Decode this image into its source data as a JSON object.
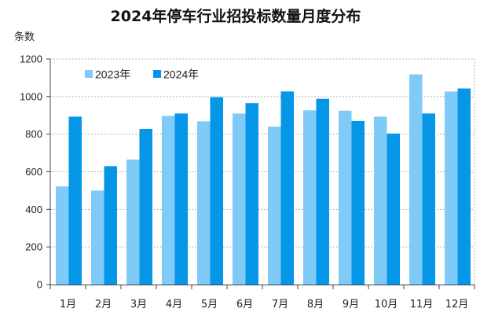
{
  "chart_data": {
    "type": "bar",
    "title": "2024年停车行业招投标数量月度分布",
    "ylabel": "条数",
    "xlabel": "",
    "categories": [
      "1月",
      "2月",
      "3月",
      "4月",
      "5月",
      "6月",
      "7月",
      "8月",
      "9月",
      "10月",
      "11月",
      "12月"
    ],
    "series": [
      {
        "name": "2023年",
        "color": "#7fcaf7",
        "values": [
          522,
          500,
          665,
          897,
          868,
          910,
          840,
          927,
          925,
          893,
          1118,
          1027
        ]
      },
      {
        "name": "2024年",
        "color": "#0596e8",
        "values": [
          893,
          630,
          828,
          910,
          997,
          965,
          1027,
          988,
          870,
          803,
          910,
          1043
        ]
      }
    ],
    "ylim": [
      0,
      1200
    ],
    "yticks": [
      0,
      200,
      400,
      600,
      800,
      1000,
      1200
    ],
    "grid": true,
    "legend": "top-left"
  }
}
